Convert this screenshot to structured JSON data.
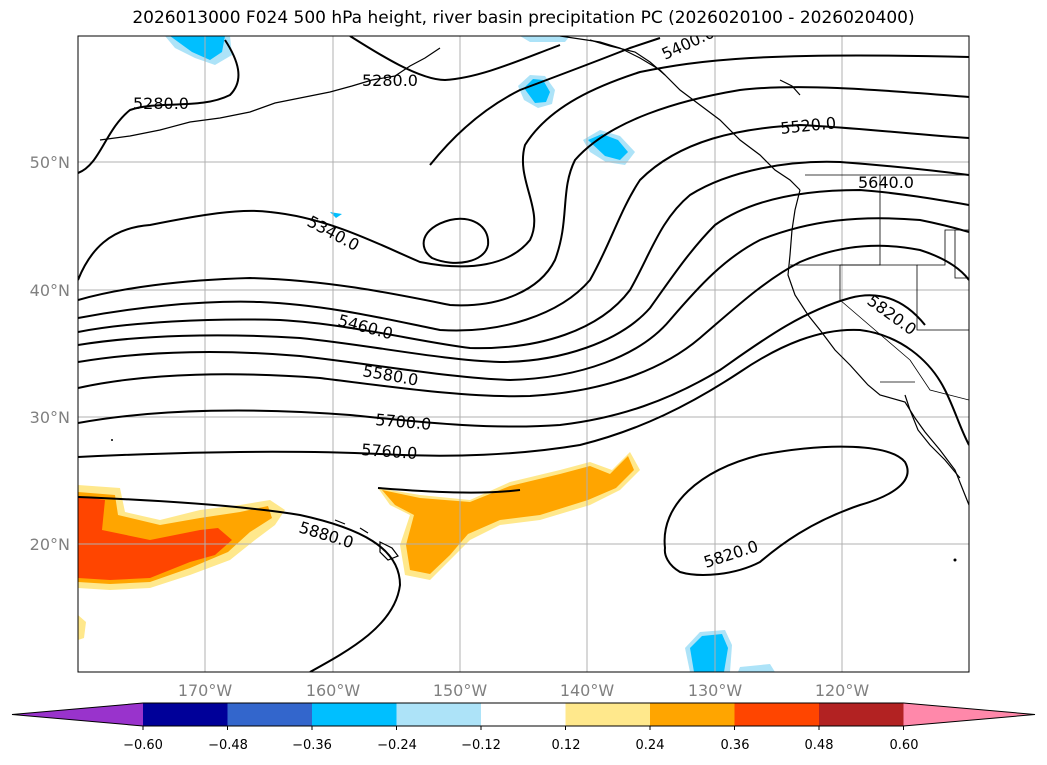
{
  "title": "2026013000 F024 500 hPa height, river basin precipitation PC (2026020100 - 2026020400)",
  "map": {
    "lat_labels": [
      "50°N",
      "40°N",
      "30°N",
      "20°N"
    ],
    "lon_labels": [
      "170°W",
      "160°W",
      "150°W",
      "140°W",
      "130°W",
      "120°W"
    ],
    "contour_labels": [
      "5280.0",
      "5280.0",
      "5400.0",
      "5520.0",
      "5640.0",
      "5340.0",
      "5460.0",
      "5580.0",
      "5700.0",
      "5760.0",
      "5820.0",
      "5880.0",
      "5820.0"
    ]
  },
  "colorbar": {
    "colors": [
      "#9933cc",
      "#000099",
      "#3366cc",
      "#00bfff",
      "#ade3f8",
      "#ffffff",
      "#ffe88c",
      "#ffa500",
      "#ff4500",
      "#b22222",
      "#ff88aa"
    ],
    "ticks": [
      "−0.60",
      "−0.48",
      "−0.36",
      "−0.24",
      "−0.12",
      "0.12",
      "0.24",
      "0.36",
      "0.48",
      "0.60"
    ]
  }
}
